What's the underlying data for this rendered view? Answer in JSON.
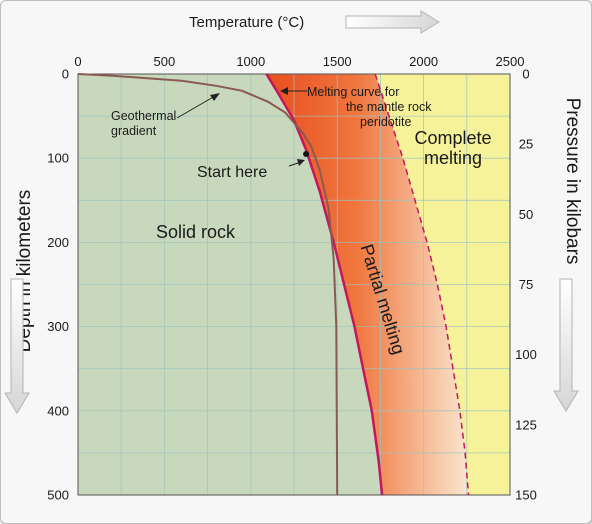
{
  "chart_data": {
    "type": "line",
    "title": "",
    "xlabel": "Temperature (°C)",
    "ylabel_left": "Depth in kilometers",
    "ylabel_right": "Pressure in kilobars",
    "xlim": [
      0,
      2500
    ],
    "ylim": [
      0,
      500
    ],
    "y2lim": [
      0,
      150
    ],
    "x_ticks": [
      "0",
      "500",
      "1000",
      "1500",
      "2000",
      "2500"
    ],
    "y_ticks_left": [
      "0",
      "100",
      "200",
      "300",
      "400",
      "500"
    ],
    "y_ticks_right": [
      "0",
      "25",
      "50",
      "75",
      "100",
      "125",
      "150"
    ],
    "grid": true,
    "series": [
      {
        "label": "Geothermal gradient",
        "color": "#8a5a52",
        "x": [
          0,
          200,
          400,
          600,
          800,
          950,
          1100,
          1200,
          1300,
          1350,
          1400,
          1450,
          1480,
          1495,
          1500
        ],
        "y": [
          0,
          2,
          5,
          8,
          14,
          20,
          33,
          46,
          70,
          86,
          115,
          160,
          220,
          300,
          500
        ]
      },
      {
        "label": "Melting curve for the mantle rock peridotite",
        "color": "#c2185b",
        "x": [
          1090,
          1150,
          1250,
          1320,
          1400,
          1480,
          1540,
          1600,
          1650,
          1700,
          1740,
          1760
        ],
        "y": [
          0,
          20,
          55,
          90,
          140,
          200,
          250,
          300,
          350,
          400,
          460,
          500
        ]
      },
      {
        "label": "Complete melting boundary",
        "color": "#c2185b",
        "style": "dashed",
        "x": [
          1720,
          1800,
          1880,
          1950,
          2020,
          2080,
          2130,
          2170,
          2210,
          2240,
          2260
        ],
        "y": [
          0,
          50,
          100,
          150,
          200,
          250,
          300,
          350,
          400,
          450,
          500
        ]
      }
    ],
    "regions": [
      {
        "label": "Solid rock",
        "color": "#c8d8bc"
      },
      {
        "label": "Partial melting",
        "color": "#ea6a3c"
      },
      {
        "label": "Complete melting",
        "color": "#f6f29a"
      }
    ],
    "annotations": [
      {
        "text": "Geothermal gradient"
      },
      {
        "text": "Start here",
        "x": 1320,
        "y": 95
      },
      {
        "text": "Melting curve for the mantle rock peridotite"
      }
    ]
  }
}
